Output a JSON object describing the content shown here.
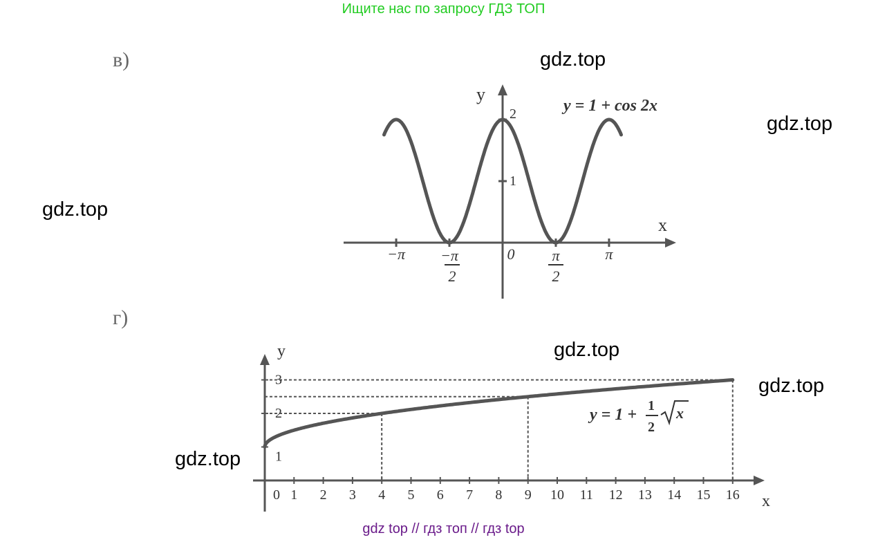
{
  "header": {
    "search_hint": "Ищите нас по запросу ГДЗ ТОП"
  },
  "watermarks": [
    "gdz.top",
    "gdz.top",
    "gdz.top",
    "gdz.top",
    "gdz.top",
    "gdz.top"
  ],
  "footer": {
    "text": "gdz top  //  гдз топ  //  гдз top"
  },
  "colors": {
    "header": "#22cc22",
    "footer": "#6a1b8a",
    "curve": "#555555"
  },
  "chart_data": [
    {
      "part_label": "в)",
      "type": "line",
      "title": "y = 1 + cos 2x",
      "xlabel": "x",
      "ylabel": "y",
      "x_ticks": [
        "−π",
        "−π/2",
        "0",
        "π/2",
        "π"
      ],
      "y_ticks": [
        "1",
        "2"
      ],
      "formula": "1 + cos(2x)",
      "xlim": [
        -3.5,
        3.5
      ],
      "ylim": [
        0,
        2
      ],
      "series": [
        {
          "x": [
            -3.5,
            -3.14159,
            -2.35619,
            -1.5708,
            -0.7854,
            0,
            0.7854,
            1.5708,
            2.35619,
            3.14159,
            3.5
          ],
          "y": [
            1.754,
            2,
            1,
            0,
            1,
            2,
            1,
            0,
            1,
            2,
            1.754
          ]
        }
      ]
    },
    {
      "part_label": "г)",
      "type": "line",
      "title": "y = 1 + ½√x",
      "xlabel": "x",
      "ylabel": "y",
      "x_ticks": [
        "0",
        "1",
        "2",
        "3",
        "4",
        "5",
        "6",
        "7",
        "8",
        "9",
        "10",
        "11",
        "12",
        "13",
        "14",
        "15",
        "16"
      ],
      "y_ticks": [
        "1",
        "2",
        "3"
      ],
      "formula": "1 + 0.5*sqrt(x)",
      "xlim": [
        0,
        16
      ],
      "ylim": [
        0,
        3
      ],
      "dashed_refs": [
        {
          "x": 4,
          "y": 2
        },
        {
          "x": 9,
          "y": 2.5
        },
        {
          "x": 16,
          "y": 3
        }
      ],
      "series": [
        {
          "x": [
            0,
            1,
            4,
            9,
            16
          ],
          "y": [
            1,
            1.5,
            2,
            2.5,
            3
          ]
        }
      ]
    }
  ]
}
